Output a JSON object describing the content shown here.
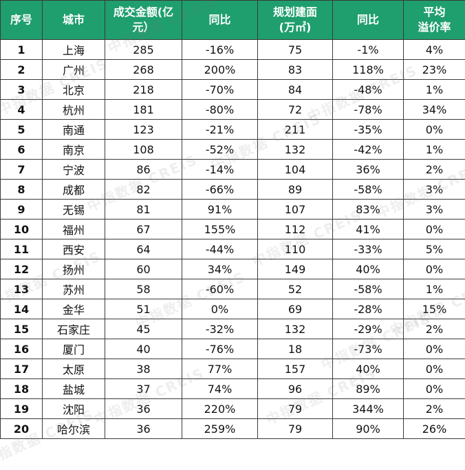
{
  "headers": [
    "序号",
    "城市",
    "成交金额(亿元)",
    "同比",
    "规划建面(万㎡)",
    "同比",
    "平均溢价率"
  ],
  "header_lines": [
    [
      "序号"
    ],
    [
      "城市"
    ],
    [
      "成交金额(亿",
      "元）"
    ],
    [
      "同比"
    ],
    [
      "规划建面",
      "(万㎡)"
    ],
    [
      "同比"
    ],
    [
      "平均",
      "溢价率"
    ]
  ],
  "rows": [
    [
      "1",
      "上海",
      "285",
      "-16%",
      "75",
      "-1%",
      "4%"
    ],
    [
      "2",
      "广州",
      "268",
      "200%",
      "83",
      "118%",
      "23%"
    ],
    [
      "3",
      "北京",
      "218",
      "-70%",
      "84",
      "-48%",
      "1%"
    ],
    [
      "4",
      "杭州",
      "181",
      "-80%",
      "72",
      "-78%",
      "34%"
    ],
    [
      "5",
      "南通",
      "123",
      "-21%",
      "211",
      "-35%",
      "0%"
    ],
    [
      "6",
      "南京",
      "108",
      "-52%",
      "132",
      "-42%",
      "1%"
    ],
    [
      "7",
      "宁波",
      "86",
      "-14%",
      "104",
      "36%",
      "2%"
    ],
    [
      "8",
      "成都",
      "82",
      "-66%",
      "89",
      "-58%",
      "3%"
    ],
    [
      "9",
      "无锡",
      "81",
      "91%",
      "107",
      "83%",
      "3%"
    ],
    [
      "10",
      "福州",
      "67",
      "155%",
      "112",
      "41%",
      "0%"
    ],
    [
      "11",
      "西安",
      "64",
      "-44%",
      "110",
      "-33%",
      "5%"
    ],
    [
      "12",
      "扬州",
      "60",
      "34%",
      "149",
      "40%",
      "0%"
    ],
    [
      "13",
      "苏州",
      "58",
      "-60%",
      "52",
      "-58%",
      "1%"
    ],
    [
      "14",
      "金华",
      "51",
      "0%",
      "69",
      "-28%",
      "15%"
    ],
    [
      "15",
      "石家庄",
      "45",
      "-32%",
      "132",
      "-29%",
      "2%"
    ],
    [
      "16",
      "厦门",
      "40",
      "-76%",
      "18",
      "-73%",
      "0%"
    ],
    [
      "17",
      "太原",
      "38",
      "77%",
      "157",
      "40%",
      "0%"
    ],
    [
      "18",
      "盐城",
      "37",
      "74%",
      "96",
      "89%",
      "0%"
    ],
    [
      "19",
      "沈阳",
      "36",
      "220%",
      "79",
      "344%",
      "2%"
    ],
    [
      "20",
      "哈尔滨",
      "36",
      "259%",
      "79",
      "90%",
      "26%"
    ]
  ],
  "watermark": "中指数据 CREIS",
  "colors": {
    "header_bg": "#1f9e6e",
    "header_text": "#ffffff",
    "border": "#3a3a3a"
  }
}
